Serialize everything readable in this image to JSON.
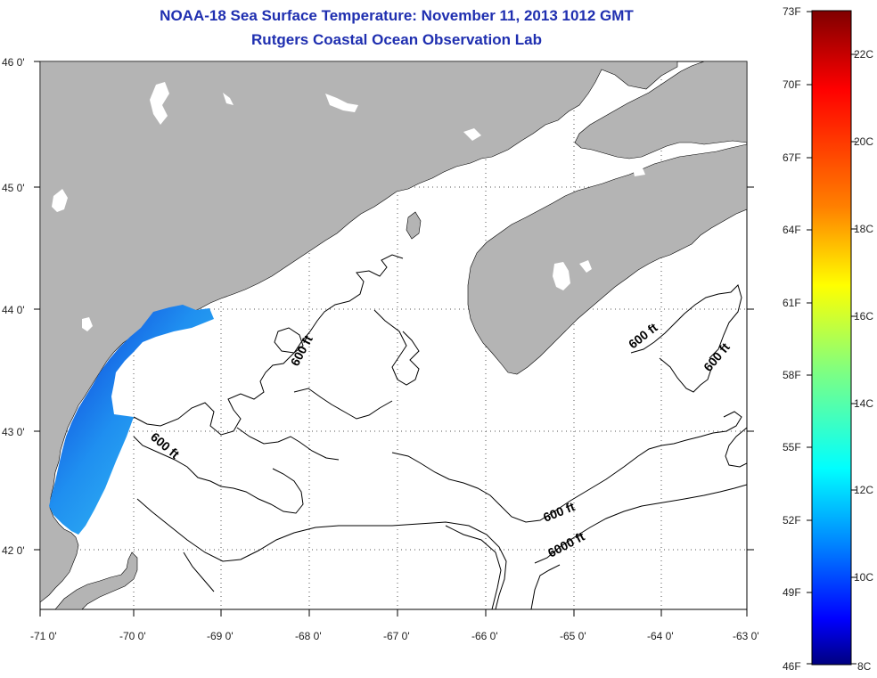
{
  "header": {
    "title": "NOAA-18 Sea Surface Temperature:  November 11, 2013 1012 GMT",
    "subtitle": "Rutgers Coastal Ocean Observation Lab"
  },
  "map": {
    "lon_labels": [
      "-71 0'",
      "-70 0'",
      "-69 0'",
      "-68 0'",
      "-67 0'",
      "-66 0'",
      "-65 0'",
      "-64 0'",
      "-63 0'"
    ],
    "lat_labels": [
      "46 0'",
      "45 0'",
      "44 0'",
      "43 0'",
      "42 0'"
    ],
    "contour_labels": [
      "600 ft",
      "600 ft",
      "600 ft",
      "600 ft",
      "600 ft",
      "6000 ft"
    ],
    "land_color": "#b4b4b4",
    "grid": true
  },
  "colorbar": {
    "f_labels": [
      "73F",
      "70F",
      "67F",
      "64F",
      "61F",
      "58F",
      "55F",
      "52F",
      "49F",
      "46F"
    ],
    "c_labels": [
      "22C",
      "20C",
      "18C",
      "16C",
      "14C",
      "12C",
      "10C",
      "8C"
    ],
    "colors": [
      "#7f0000",
      "#ff0000",
      "#ff8000",
      "#ffff00",
      "#80ff80",
      "#00ffff",
      "#0080ff",
      "#0000ff",
      "#00007f"
    ]
  }
}
